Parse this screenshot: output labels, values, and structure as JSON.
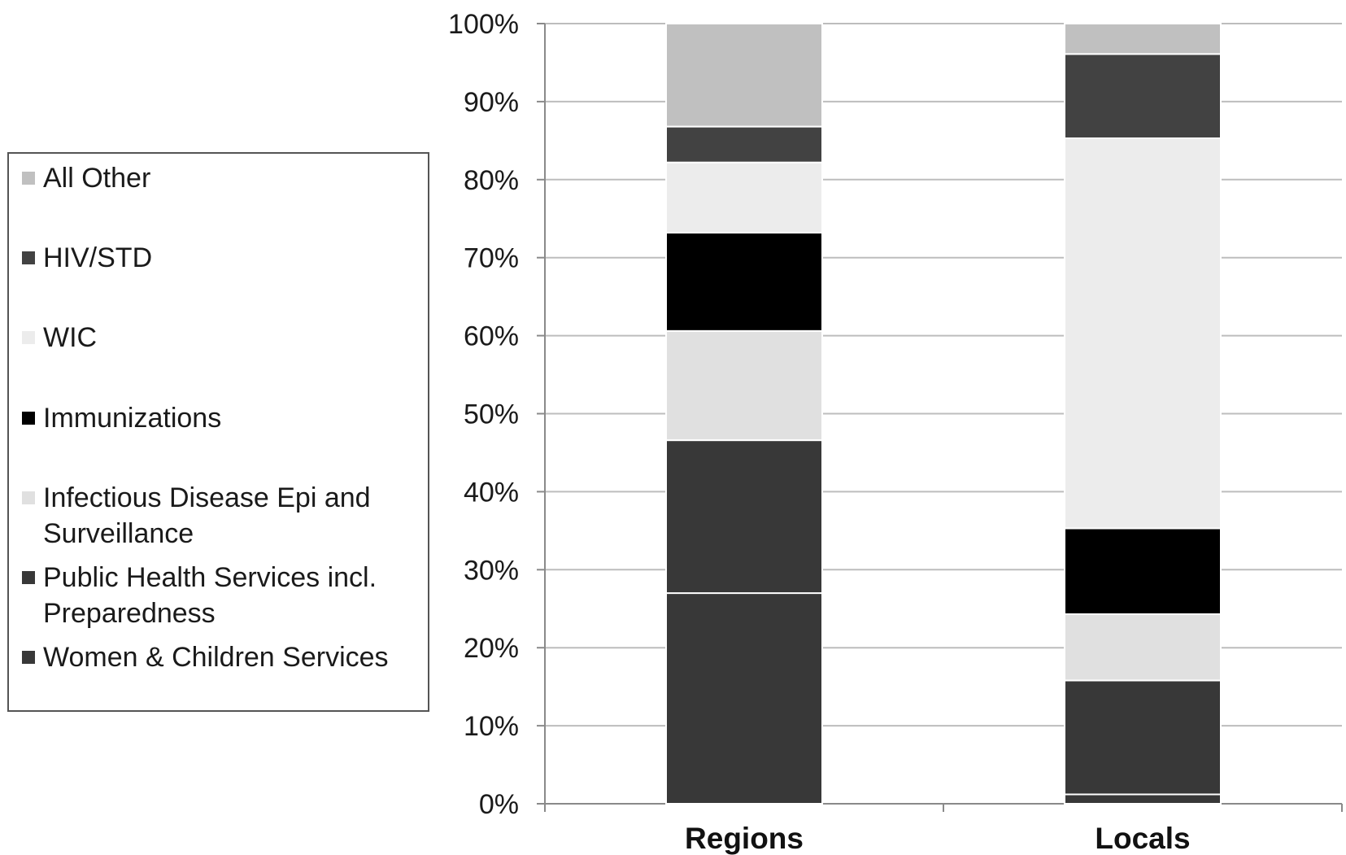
{
  "chart_data": {
    "type": "bar",
    "stacked": "percent",
    "categories": [
      "Regions",
      "Locals"
    ],
    "ylim": [
      0,
      100
    ],
    "yticks": [
      "0%",
      "10%",
      "20%",
      "30%",
      "40%",
      "50%",
      "60%",
      "70%",
      "80%",
      "90%",
      "100%"
    ],
    "grid": true,
    "legend_position": "left",
    "series": [
      {
        "name": "Women & Children Services",
        "color": "#383838",
        "values": [
          27,
          1.2
        ]
      },
      {
        "name": "Public Health Services incl. Preparedness",
        "color": "#383838",
        "values": [
          19.6,
          14.6
        ]
      },
      {
        "name": "Infectious Disease Epi and Surveillance",
        "color": "#e0e0e0",
        "values": [
          14,
          8.5
        ]
      },
      {
        "name": "Immunizations",
        "color": "#000000",
        "values": [
          12.6,
          11
        ]
      },
      {
        "name": "WIC",
        "color": "#ececec",
        "values": [
          9,
          50
        ]
      },
      {
        "name": "HIV/STD",
        "color": "#424242",
        "values": [
          4.6,
          10.8
        ]
      },
      {
        "name": "All Other",
        "color": "#c0c0c0",
        "values": [
          13.2,
          3.9
        ]
      }
    ]
  },
  "legend": {
    "items": [
      {
        "label": "All Other",
        "color": "#c0c0c0"
      },
      {
        "label": "HIV/STD",
        "color": "#424242"
      },
      {
        "label": "WIC",
        "color": "#ececec"
      },
      {
        "label": "Immunizations",
        "color": "#000000"
      },
      {
        "label": "Infectious Disease Epi and Surveillance",
        "color": "#e0e0e0"
      },
      {
        "label": "Public Health Services incl. Preparedness",
        "color": "#383838"
      },
      {
        "label": "Women & Children Services",
        "color": "#383838"
      }
    ]
  }
}
